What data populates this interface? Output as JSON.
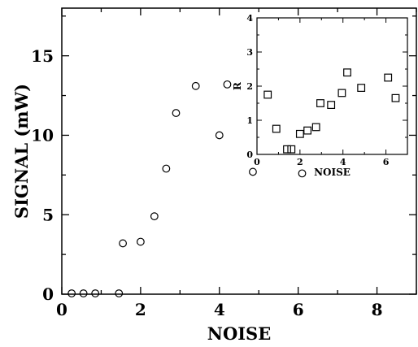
{
  "chart_data": [
    {
      "type": "scatter",
      "xlabel": "NOISE",
      "ylabel": "SIGNAL (mW)",
      "xlim": [
        0,
        9
      ],
      "ylim": [
        0,
        18
      ],
      "xticks": [
        0,
        2,
        4,
        6,
        8
      ],
      "yticks": [
        0,
        5,
        10,
        15
      ],
      "marker": "circle",
      "points": [
        {
          "x": 0.25,
          "y": 0.05
        },
        {
          "x": 0.55,
          "y": 0.05
        },
        {
          "x": 0.85,
          "y": 0.05
        },
        {
          "x": 1.45,
          "y": 0.05
        },
        {
          "x": 1.55,
          "y": 3.2
        },
        {
          "x": 2.0,
          "y": 3.3
        },
        {
          "x": 2.35,
          "y": 4.9
        },
        {
          "x": 2.65,
          "y": 7.9
        },
        {
          "x": 2.9,
          "y": 11.4
        },
        {
          "x": 3.4,
          "y": 13.1
        },
        {
          "x": 4.0,
          "y": 10.0
        },
        {
          "x": 4.2,
          "y": 13.2
        },
        {
          "x": 4.85,
          "y": 7.7
        },
        {
          "x": 6.1,
          "y": 7.6
        }
      ]
    },
    {
      "type": "scatter",
      "inset": true,
      "xlabel": "NOISE",
      "ylabel": "R",
      "xlim": [
        0,
        7
      ],
      "ylim": [
        0,
        4
      ],
      "xticks": [
        0,
        2,
        4,
        6
      ],
      "yticks": [
        0,
        1,
        2,
        3,
        4
      ],
      "marker": "square",
      "points": [
        {
          "x": 0.5,
          "y": 1.75
        },
        {
          "x": 0.9,
          "y": 0.75
        },
        {
          "x": 1.4,
          "y": 0.15
        },
        {
          "x": 1.6,
          "y": 0.15
        },
        {
          "x": 2.0,
          "y": 0.6
        },
        {
          "x": 2.35,
          "y": 0.7
        },
        {
          "x": 2.75,
          "y": 0.8
        },
        {
          "x": 2.95,
          "y": 1.5
        },
        {
          "x": 3.45,
          "y": 1.45
        },
        {
          "x": 3.95,
          "y": 1.8
        },
        {
          "x": 4.2,
          "y": 2.4
        },
        {
          "x": 4.85,
          "y": 1.95
        },
        {
          "x": 6.1,
          "y": 2.25
        },
        {
          "x": 6.45,
          "y": 1.65
        }
      ]
    }
  ]
}
